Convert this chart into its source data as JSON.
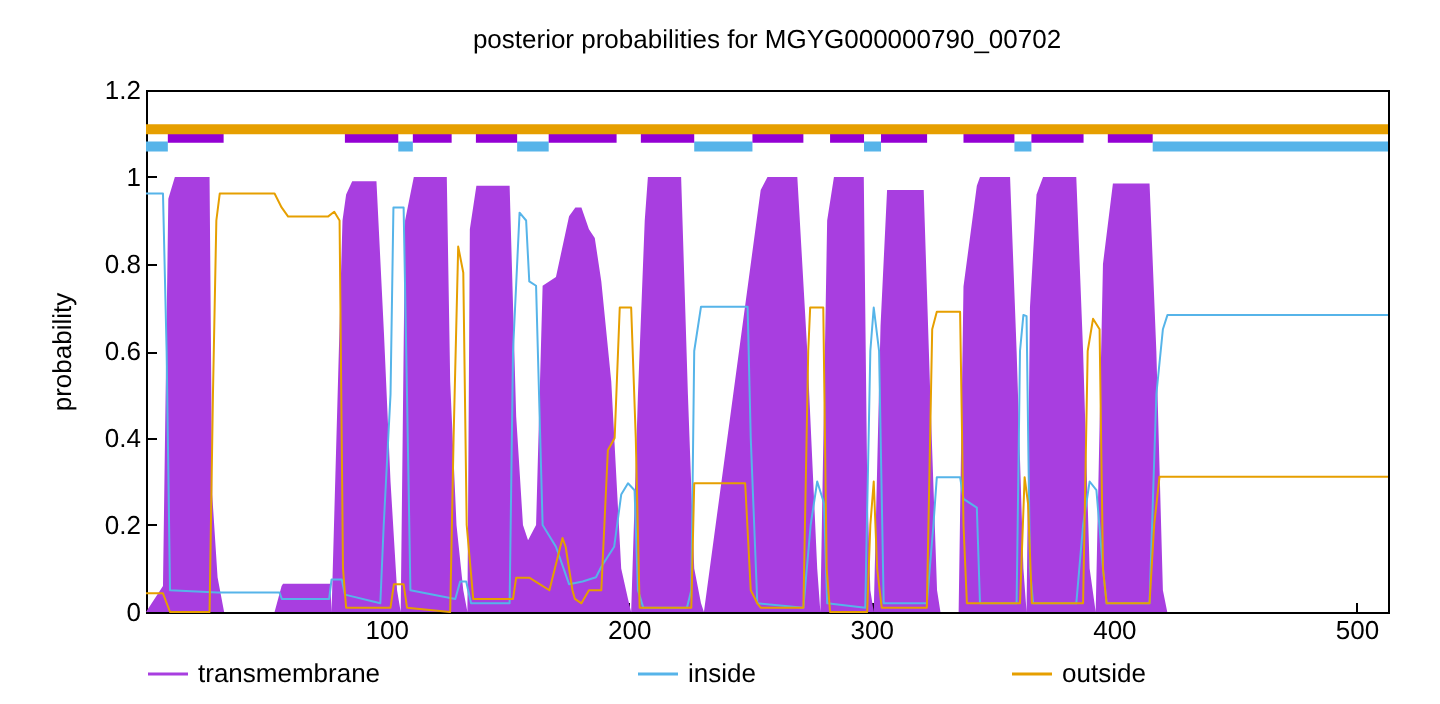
{
  "chart_data": {
    "type": "line",
    "title": "posterior probabilities for MGYG000000790_00702",
    "ylabel": "probability",
    "xlim": [
      1,
      513
    ],
    "xticks": [
      100,
      200,
      300,
      400,
      500
    ],
    "ylim": [
      0,
      1.2
    ],
    "yticks": [
      0,
      0.2,
      0.4,
      0.6,
      0.8,
      1,
      1.2
    ],
    "legend": "bottom",
    "series": [
      {
        "name": "transmembrane",
        "type": "area",
        "color": "#a83ee0",
        "x": [
          1,
          8,
          10.2,
          12.9,
          27.2,
          28.3,
          30.5,
          33.2,
          54,
          56.9,
          57.5,
          77,
          77.5,
          82,
          83.5,
          86,
          96,
          99.1,
          101.8,
          104.5,
          106,
          107.8,
          111.4,
          125,
          126.4,
          129,
          131.8,
          133.5,
          134.5,
          137.2,
          150.9,
          153.6,
          156.4,
          158.5,
          161.8,
          164.5,
          170,
          175.4,
          178,
          180.5,
          183.6,
          186,
          188.7,
          192.8,
          196.9,
          199.7,
          201,
          203.8,
          206.6,
          207.9,
          221.6,
          224.4,
          227,
          229.8,
          231,
          250.3,
          254.4,
          257.2,
          269.5,
          273.6,
          277.7,
          279,
          281.8,
          284.6,
          296.9,
          298.3,
          299.6,
          301,
          303.8,
          306.5,
          321.6,
          324.3,
          327.1,
          328.5,
          336,
          338,
          343.5,
          344.8,
          357.2,
          359.9,
          362.7,
          364,
          365.4,
          368.1,
          370.8,
          384.5,
          387.3,
          390,
          392.5,
          395.5,
          399.6,
          414.7,
          417.5,
          420.2,
          422,
          513
        ],
        "values": [
          0,
          0.06,
          0.95,
          1.0,
          1.0,
          0.27,
          0.08,
          0,
          0,
          0.06,
          0.065,
          0.065,
          0,
          0.9,
          0.96,
          0.99,
          0.99,
          0.64,
          0.3,
          0.05,
          0,
          0.9,
          1.0,
          1.0,
          0.53,
          0.2,
          0.05,
          0,
          0.88,
          0.98,
          0.98,
          0.45,
          0.2,
          0.165,
          0.2,
          0.75,
          0.77,
          0.91,
          0.93,
          0.93,
          0.88,
          0.86,
          0.76,
          0.53,
          0.1,
          0.03,
          0,
          0.5,
          0.9,
          1.0,
          1.0,
          0.5,
          0.1,
          0.02,
          0,
          0.8,
          0.97,
          1.0,
          1.0,
          0.6,
          0.1,
          0,
          0.9,
          1.0,
          1.0,
          0.3,
          0.05,
          0,
          0.657,
          0.97,
          0.97,
          0.5,
          0.05,
          0,
          0,
          0.748,
          0.98,
          1.0,
          1.0,
          0.6,
          0.1,
          0,
          0.7,
          0.96,
          1.0,
          1.0,
          0.6,
          0.1,
          0,
          0.8,
          0.985,
          0.985,
          0.6,
          0.05,
          0,
          0
        ]
      },
      {
        "name": "inside",
        "color": "#56b4e9",
        "x": [
          1,
          8,
          9.5,
          10.9,
          30.5,
          56,
          57,
          76.5,
          77.5,
          81.7,
          83,
          97.6,
          99,
          101.8,
          103,
          107.2,
          108.6,
          110,
          128.5,
          130.5,
          133,
          135,
          150.9,
          152.3,
          155,
          157.7,
          159,
          161.8,
          164.5,
          170,
          175.4,
          181,
          186.5,
          188.7,
          194,
          196.9,
          199.7,
          202.4,
          203.8,
          206,
          224,
          225.8,
          227,
          229.8,
          249,
          250.3,
          253,
          272,
          275,
          277.7,
          280.5,
          281.8,
          297.5,
          299.6,
          301,
          303.2,
          305.1,
          322.9,
          325.6,
          327,
          336.6,
          338,
          343.5,
          344.8,
          359.9,
          361.3,
          362.7,
          364,
          365.4,
          366.7,
          384.5,
          387.3,
          390,
          392.8,
          395.5,
          397,
          414.7,
          417.5,
          420.2,
          422.1,
          513
        ],
        "values": [
          0.962,
          0.962,
          0.6,
          0.05,
          0.045,
          0.045,
          0.03,
          0.03,
          0.075,
          0.075,
          0.04,
          0.02,
          0.2,
          0.5,
          0.93,
          0.93,
          0.5,
          0.05,
          0.03,
          0.07,
          0.07,
          0.02,
          0.02,
          0.6,
          0.918,
          0.9,
          0.76,
          0.75,
          0.2,
          0.15,
          0.064,
          0.07,
          0.08,
          0.104,
          0.15,
          0.27,
          0.296,
          0.28,
          0.05,
          0.01,
          0.01,
          0.05,
          0.6,
          0.702,
          0.702,
          0.4,
          0.02,
          0.01,
          0.2,
          0.3,
          0.25,
          0.02,
          0.01,
          0.6,
          0.7,
          0.6,
          0.02,
          0.02,
          0.2,
          0.31,
          0.31,
          0.26,
          0.24,
          0.02,
          0.02,
          0.6,
          0.683,
          0.68,
          0.1,
          0.02,
          0.02,
          0.2,
          0.3,
          0.28,
          0.1,
          0.02,
          0.02,
          0.5,
          0.65,
          0.683,
          0.683
        ]
      },
      {
        "name": "outside",
        "color": "#e69f00",
        "x": [
          1,
          8,
          10.9,
          27.2,
          28.6,
          30,
          31.4,
          54,
          56.9,
          59.6,
          76,
          78.6,
          80.8,
          82.2,
          83.5,
          101.8,
          103.2,
          107.2,
          108.6,
          126.4,
          127.8,
          129.7,
          131.8,
          133.2,
          135.9,
          152.3,
          153.6,
          159,
          167.3,
          172.7,
          174,
          176.8,
          177.8,
          180.5,
          183.6,
          186.4,
          188.7,
          191.4,
          194.2,
          196.3,
          201,
          202.9,
          204.5,
          225.8,
          227,
          248,
          250.3,
          253,
          254.4,
          272,
          274,
          274.8,
          280.2,
          281.6,
          283,
          298.3,
          299.6,
          301,
          302.4,
          304.3,
          322.9,
          325.1,
          327,
          336.6,
          338,
          339.4,
          361.3,
          363.2,
          364.6,
          366.2,
          387.3,
          389.2,
          391.4,
          394.1,
          395.5,
          397,
          414.7,
          416.6,
          418.8,
          513
        ],
        "values": [
          0.043,
          0.043,
          0,
          0,
          0.5,
          0.9,
          0.962,
          0.962,
          0.93,
          0.909,
          0.909,
          0.92,
          0.9,
          0.1,
          0.01,
          0.01,
          0.064,
          0.064,
          0.01,
          0,
          0.4,
          0.84,
          0.78,
          0.2,
          0.03,
          0.03,
          0.079,
          0.079,
          0.05,
          0.17,
          0.15,
          0.05,
          0.03,
          0.02,
          0.05,
          0.05,
          0.05,
          0.372,
          0.4,
          0.7,
          0.7,
          0.4,
          0.01,
          0.01,
          0.296,
          0.296,
          0.05,
          0.02,
          0.01,
          0.01,
          0.6,
          0.7,
          0.7,
          0.1,
          0,
          0,
          0.2,
          0.3,
          0.1,
          0.01,
          0.01,
          0.65,
          0.69,
          0.69,
          0.2,
          0.02,
          0.02,
          0.31,
          0.25,
          0.02,
          0.02,
          0.6,
          0.674,
          0.65,
          0.1,
          0.02,
          0.02,
          0.2,
          0.311,
          0.311
        ]
      },
      {
        "color": "#56b4e9",
        "x": [
          1,
          10,
          10.5,
          105,
          111,
          111.5,
          154,
          167,
          167.5,
          227,
          251,
          251.5,
          297,
          304,
          304.5,
          359,
          366,
          366.5,
          416,
          513
        ],
        "values": [
          1.07,
          1.07,
          null,
          1.07,
          1.07,
          null,
          1.07,
          1.07,
          null,
          1.07,
          1.07,
          null,
          1.07,
          1.07,
          null,
          1.07,
          1.07,
          null,
          1.07,
          1.07
        ]
      },
      {
        "color": "#9400d3",
        "x": [
          10,
          33,
          33.5,
          83,
          105,
          105.5,
          111,
          127,
          127.5,
          137,
          154,
          154.5,
          167,
          195,
          195.5,
          205,
          227,
          227.5,
          251,
          272,
          272.5,
          283,
          297,
          297.5,
          304,
          323,
          323.5,
          338,
          359,
          359.5,
          366,
          387.5,
          388,
          397.5,
          416
        ],
        "values": [
          1.09,
          1.09,
          null,
          1.09,
          1.09,
          null,
          1.09,
          1.09,
          null,
          1.09,
          1.09,
          null,
          1.09,
          1.09,
          null,
          1.09,
          1.09,
          null,
          1.09,
          1.09,
          null,
          1.09,
          1.09,
          null,
          1.09,
          1.09,
          null,
          1.09,
          1.09,
          null,
          1.09,
          1.09,
          null,
          1.09,
          1.09
        ]
      },
      {
        "color": "#e69f00",
        "x": [
          1,
          513
        ],
        "values": [
          1.11,
          1.11
        ]
      }
    ]
  }
}
